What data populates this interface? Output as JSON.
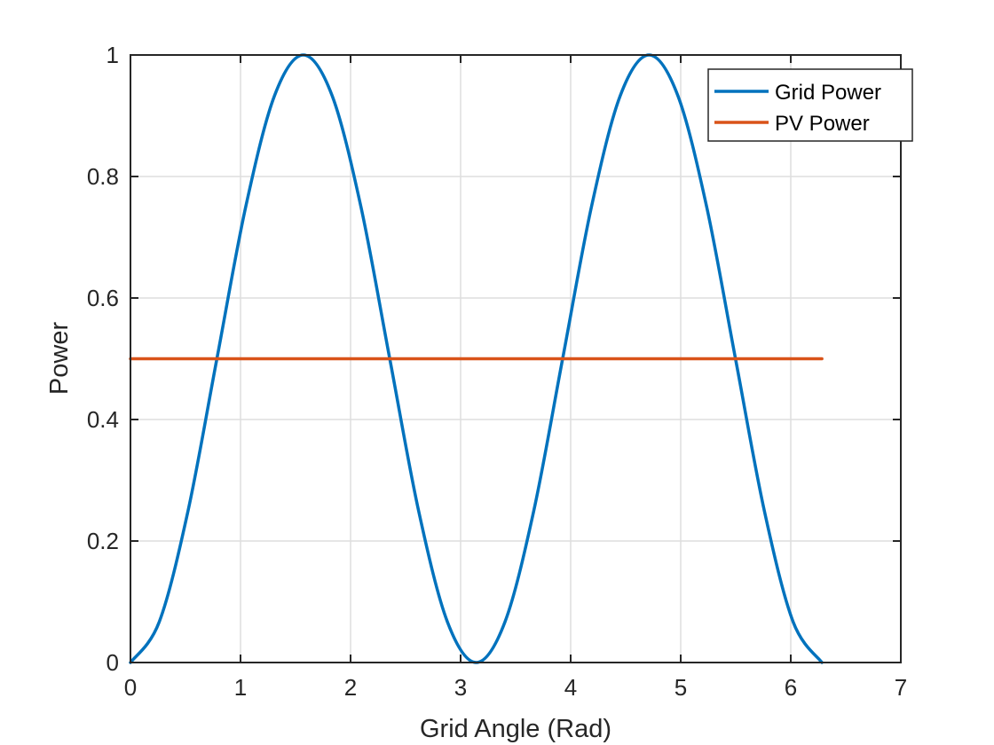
{
  "chart_data": {
    "type": "line",
    "title": "",
    "xlabel": "Grid Angle (Rad)",
    "ylabel": "Power",
    "xlim": [
      0,
      7
    ],
    "ylim": [
      0,
      1
    ],
    "x_ticks": [
      0,
      1,
      2,
      3,
      4,
      5,
      6,
      7
    ],
    "y_ticks": [
      0,
      0.2,
      0.4,
      0.6,
      0.8,
      1
    ],
    "x_tick_labels": [
      "0",
      "1",
      "2",
      "3",
      "4",
      "5",
      "6",
      "7"
    ],
    "y_tick_labels": [
      "0",
      "0.2",
      "0.4",
      "0.6",
      "0.8",
      "1"
    ],
    "grid": true,
    "legend_position": "top-right",
    "series": [
      {
        "name": "Grid Power",
        "color": "#0072BD",
        "x": [
          0,
          0.2618,
          0.5236,
          0.7854,
          1.0472,
          1.309,
          1.5708,
          1.8326,
          2.0944,
          2.3562,
          2.618,
          2.8798,
          3.1416,
          3.4034,
          3.6652,
          3.927,
          4.1888,
          4.4506,
          4.7124,
          4.9742,
          5.236,
          5.4978,
          5.7596,
          6.0214,
          6.2832
        ],
        "y": [
          0,
          0.067,
          0.25,
          0.5,
          0.75,
          0.933,
          1,
          0.933,
          0.75,
          0.5,
          0.25,
          0.067,
          0,
          0.067,
          0.25,
          0.5,
          0.75,
          0.933,
          1,
          0.933,
          0.75,
          0.5,
          0.25,
          0.067,
          0
        ]
      },
      {
        "name": "PV Power",
        "color": "#D95319",
        "x": [
          0,
          6.2832
        ],
        "y": [
          0.5,
          0.5
        ]
      }
    ]
  }
}
